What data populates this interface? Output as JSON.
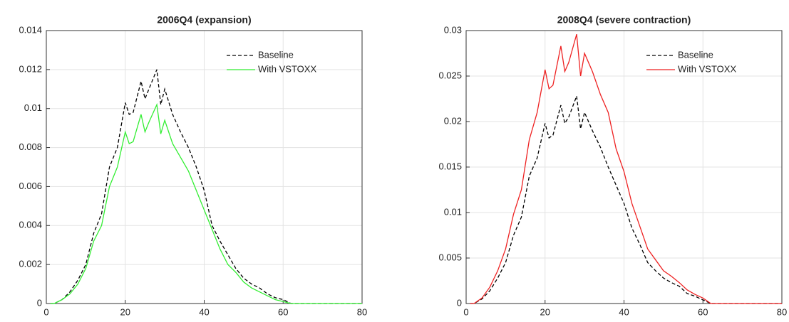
{
  "chart_data": [
    {
      "type": "line",
      "title": "2006Q4 (expansion)",
      "x": [
        1,
        2,
        4,
        6,
        8,
        10,
        12,
        14,
        16,
        18,
        20,
        21,
        22,
        24,
        25,
        26,
        28,
        29,
        30,
        32,
        34,
        36,
        38,
        40,
        42,
        44,
        46,
        48,
        50,
        52,
        54,
        56,
        58,
        60,
        62,
        70,
        80
      ],
      "series": [
        {
          "name": "Baseline",
          "color": "#000000",
          "line_style": "dashed",
          "values": [
            0,
            0,
            0.0002,
            0.0006,
            0.0012,
            0.002,
            0.0036,
            0.0046,
            0.007,
            0.008,
            0.0103,
            0.0097,
            0.0098,
            0.0114,
            0.0105,
            0.011,
            0.012,
            0.0102,
            0.011,
            0.0097,
            0.0088,
            0.008,
            0.007,
            0.0058,
            0.004,
            0.0032,
            0.0025,
            0.0018,
            0.0013,
            0.001,
            0.0008,
            0.0005,
            0.0003,
            0.0002,
            0,
            0,
            0
          ]
        },
        {
          "name": "With VSTOXX",
          "color": "#33ee33",
          "line_style": "solid",
          "values": [
            0,
            0,
            0.0002,
            0.0005,
            0.001,
            0.0018,
            0.0032,
            0.004,
            0.006,
            0.007,
            0.0088,
            0.0082,
            0.0083,
            0.0097,
            0.0088,
            0.0093,
            0.0102,
            0.0087,
            0.0094,
            0.0082,
            0.0075,
            0.0068,
            0.0058,
            0.0048,
            0.0038,
            0.0028,
            0.002,
            0.0016,
            0.0011,
            0.0008,
            0.0006,
            0.0004,
            0.0002,
            0.0001,
            0,
            0,
            0
          ]
        }
      ],
      "xlim": [
        0,
        80
      ],
      "xticks": [
        0,
        20,
        40,
        60,
        80
      ],
      "ylim": [
        0,
        0.014
      ],
      "yticks": [
        0,
        0.002,
        0.004,
        0.006,
        0.008,
        0.01,
        0.012,
        0.014
      ],
      "grid": true,
      "legend": "upper right"
    },
    {
      "type": "line",
      "title": "2008Q4 (severe contraction)",
      "x": [
        1,
        2,
        4,
        6,
        8,
        10,
        12,
        14,
        16,
        18,
        20,
        21,
        22,
        24,
        25,
        26,
        28,
        29,
        30,
        32,
        34,
        36,
        38,
        40,
        42,
        44,
        46,
        48,
        50,
        52,
        54,
        56,
        58,
        60,
        62,
        70,
        80
      ],
      "series": [
        {
          "name": "Baseline",
          "color": "#000000",
          "line_style": "dashed",
          "values": [
            0,
            0,
            0.0005,
            0.0014,
            0.0028,
            0.0045,
            0.0075,
            0.0095,
            0.014,
            0.016,
            0.0198,
            0.0182,
            0.0185,
            0.0218,
            0.0198,
            0.0205,
            0.0228,
            0.0192,
            0.021,
            0.019,
            0.0172,
            0.015,
            0.013,
            0.011,
            0.0083,
            0.0065,
            0.0045,
            0.0036,
            0.0028,
            0.0023,
            0.0019,
            0.0011,
            0.0008,
            0.0004,
            0,
            0,
            0
          ]
        },
        {
          "name": "With VSTOXX",
          "color": "#ee2222",
          "line_style": "solid",
          "values": [
            0,
            0,
            0.0006,
            0.0018,
            0.0036,
            0.006,
            0.0098,
            0.0125,
            0.018,
            0.021,
            0.0257,
            0.0236,
            0.024,
            0.0283,
            0.0255,
            0.0265,
            0.0296,
            0.025,
            0.0275,
            0.0255,
            0.023,
            0.021,
            0.017,
            0.0145,
            0.011,
            0.0085,
            0.006,
            0.0048,
            0.0036,
            0.003,
            0.0023,
            0.0015,
            0.001,
            0.0006,
            0,
            0,
            0
          ]
        }
      ],
      "xlim": [
        0,
        80
      ],
      "xticks": [
        0,
        20,
        40,
        60,
        80
      ],
      "ylim": [
        0,
        0.03
      ],
      "yticks": [
        0,
        0.005,
        0.01,
        0.015,
        0.02,
        0.025,
        0.03
      ],
      "grid": true,
      "legend": "upper right"
    }
  ]
}
